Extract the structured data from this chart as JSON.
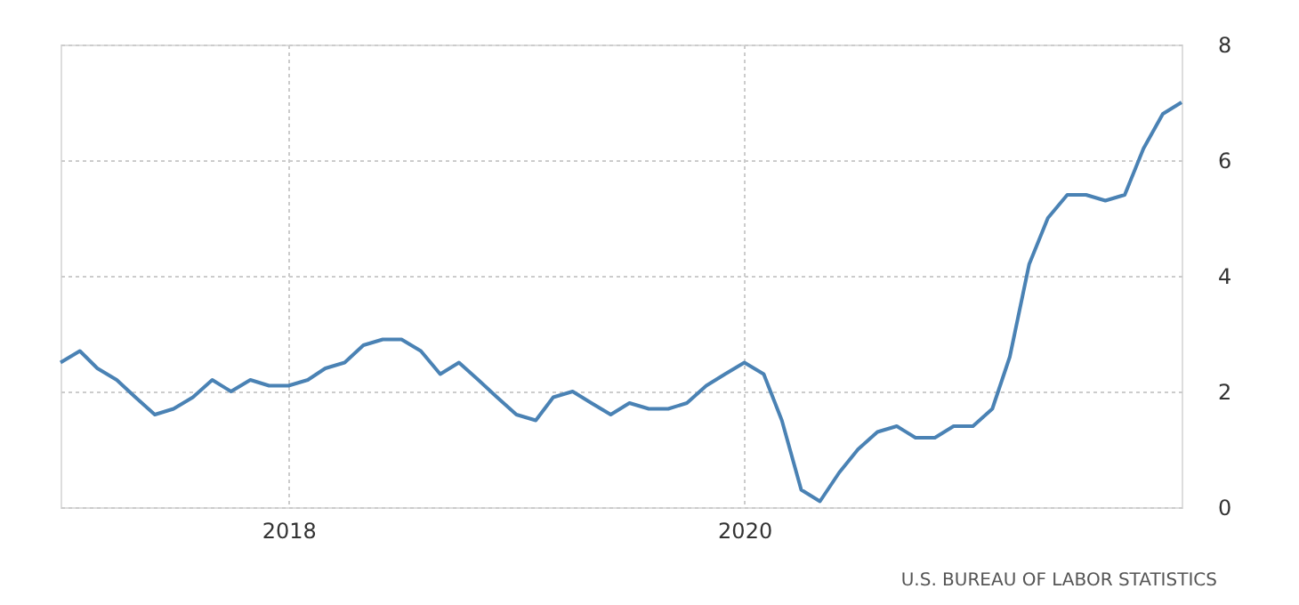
{
  "chart_data": {
    "type": "line",
    "x": [
      "2017-01",
      "2017-02",
      "2017-03",
      "2017-04",
      "2017-05",
      "2017-06",
      "2017-07",
      "2017-08",
      "2017-09",
      "2017-10",
      "2017-11",
      "2017-12",
      "2018-01",
      "2018-02",
      "2018-03",
      "2018-04",
      "2018-05",
      "2018-06",
      "2018-07",
      "2018-08",
      "2018-09",
      "2018-10",
      "2018-11",
      "2018-12",
      "2019-01",
      "2019-02",
      "2019-03",
      "2019-04",
      "2019-05",
      "2019-06",
      "2019-07",
      "2019-08",
      "2019-09",
      "2019-10",
      "2019-11",
      "2019-12",
      "2020-01",
      "2020-02",
      "2020-03",
      "2020-04",
      "2020-05",
      "2020-06",
      "2020-07",
      "2020-08",
      "2020-09",
      "2020-10",
      "2020-11",
      "2020-12",
      "2021-01",
      "2021-02",
      "2021-03",
      "2021-04",
      "2021-05",
      "2021-06",
      "2021-07",
      "2021-08",
      "2021-09",
      "2021-10",
      "2021-11",
      "2021-12"
    ],
    "series": [
      {
        "color": "#4a82b4",
        "values": [
          2.5,
          2.7,
          2.4,
          2.2,
          1.9,
          1.6,
          1.7,
          1.9,
          2.2,
          2.0,
          2.2,
          2.1,
          2.1,
          2.2,
          2.4,
          2.5,
          2.8,
          2.9,
          2.9,
          2.7,
          2.3,
          2.5,
          2.2,
          1.9,
          1.6,
          1.5,
          1.9,
          2.0,
          1.8,
          1.6,
          1.8,
          1.7,
          1.7,
          1.8,
          2.1,
          2.3,
          2.5,
          2.3,
          1.5,
          0.3,
          0.1,
          0.6,
          1.0,
          1.3,
          1.4,
          1.2,
          1.2,
          1.4,
          1.4,
          1.7,
          2.6,
          4.2,
          5.0,
          5.4,
          5.4,
          5.3,
          5.4,
          6.2,
          6.8,
          7.0
        ]
      }
    ],
    "xlim": [
      "2017-01",
      "2021-12"
    ],
    "xticks": [
      {
        "value": "2018-01",
        "label": "2018"
      },
      {
        "value": "2020-01",
        "label": "2020"
      }
    ],
    "ylim": [
      0,
      8
    ],
    "yticks": [
      0,
      2,
      4,
      6,
      8
    ],
    "grid": true,
    "marker": "none",
    "line_style": "solid",
    "annotations": [
      "U.S. BUREAU OF LABOR STATISTICS"
    ]
  }
}
